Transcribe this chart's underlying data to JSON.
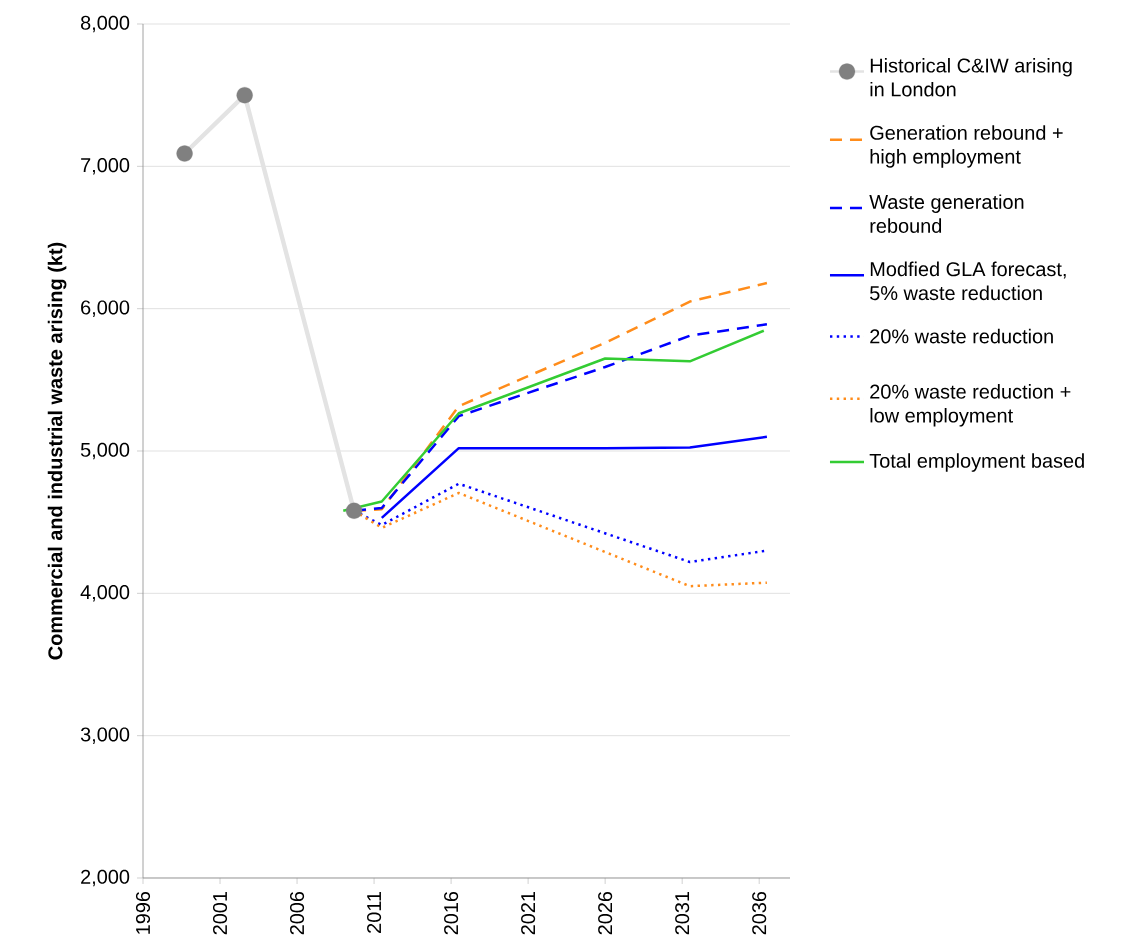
{
  "chart_data": {
    "type": "line",
    "ylabel": "Commercial and industrial  waste arising (kt)",
    "xlim": [
      1996,
      2038
    ],
    "ylim": [
      2000,
      8000
    ],
    "xticks": [
      1996,
      2001,
      2006,
      2011,
      2016,
      2021,
      2026,
      2031,
      2036
    ],
    "yticks": [
      {
        "value": 2000,
        "label": "2,000"
      },
      {
        "value": 3000,
        "label": "3,000"
      },
      {
        "value": 4000,
        "label": "4,000"
      },
      {
        "value": 5000,
        "label": "5,000"
      },
      {
        "value": 6000,
        "label": "6,000"
      },
      {
        "value": 7000,
        "label": "7,000"
      },
      {
        "value": 8000,
        "label": "8,000"
      }
    ],
    "grid": "y",
    "legend": "right",
    "series": [
      {
        "name": "Historical C&IW arising in London",
        "color": "#808080",
        "marker": "circle",
        "line_style": "solid",
        "x": [
          1998.7,
          2002.6,
          2009.7
        ],
        "values": [
          7090,
          7500,
          4580
        ]
      },
      {
        "name": "Generation rebound + high employment",
        "color": "#ff8c1a",
        "line_style": "dashed",
        "x": [
          2009.7,
          2011.5,
          2016.5,
          2026,
          2031.5,
          2036.5
        ],
        "values": [
          4580,
          4590,
          5315,
          5760,
          6050,
          6180
        ]
      },
      {
        "name": "Waste generation rebound",
        "color": "#0000ff",
        "line_style": "dashed",
        "x": [
          2009.7,
          2011.5,
          2016.5,
          2026,
          2031.5,
          2036.5
        ],
        "values": [
          4580,
          4600,
          5245,
          5590,
          5810,
          5890
        ]
      },
      {
        "name": "Modfied GLA forecast, 5% waste reduction",
        "color": "#0000ff",
        "line_style": "solid",
        "x": [
          2011.5,
          2016.5,
          2026,
          2031.5,
          2036.5
        ],
        "values": [
          4530,
          5020,
          5020,
          5025,
          5100
        ]
      },
      {
        "name": "20% waste reduction",
        "color": "#0000ff",
        "line_style": "dotted",
        "x": [
          2009.7,
          2011.5,
          2016.5,
          2031.5,
          2036.5
        ],
        "values": [
          4580,
          4480,
          4770,
          4220,
          4300
        ]
      },
      {
        "name": "20% waste reduction + low employment",
        "color": "#ff8c1a",
        "line_style": "dotted",
        "x": [
          2009.7,
          2011.5,
          2016.5,
          2031.5,
          2036.5
        ],
        "values": [
          4580,
          4460,
          4705,
          4050,
          4075
        ]
      },
      {
        "name": "Total employment based",
        "color": "#33cc33",
        "line_style": "solid",
        "x": [
          2009.0,
          2011.5,
          2016.5,
          2026,
          2031.5,
          2036.3
        ],
        "values": [
          4580,
          4645,
          5265,
          5650,
          5630,
          5845
        ]
      }
    ]
  }
}
